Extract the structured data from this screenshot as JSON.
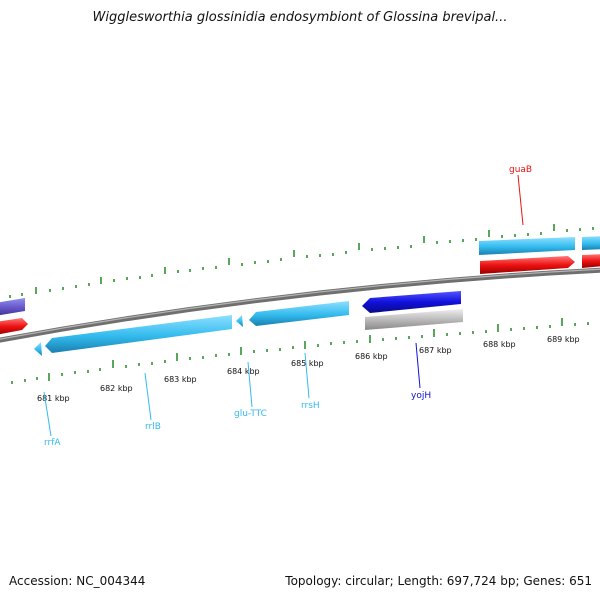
{
  "title": "Wigglesworthia glossinidia endosymbiont of Glossina brevipal...",
  "footer": {
    "accession": "Accession: NC_004344",
    "summary": "Topology: circular; Length: 697,724 bp; Genes: 651"
  },
  "ticks": [
    "681 kbp",
    "682 kbp",
    "683 kbp",
    "684 kbp",
    "685 kbp",
    "686 kbp",
    "687 kbp",
    "688 kbp",
    "689 kbp"
  ],
  "genes": {
    "rrfA": "rrfA",
    "rrlB": "rrlB",
    "gluTTC": "glu-TTC",
    "rrsH": "rrsH",
    "yojH": "yojH",
    "guaB": "guaB"
  },
  "colors": {
    "rna": "#33bbee",
    "cds": "#ff1111",
    "dark_gene": "#1111dd",
    "backbone": "#808080",
    "tick": "#228822"
  }
}
